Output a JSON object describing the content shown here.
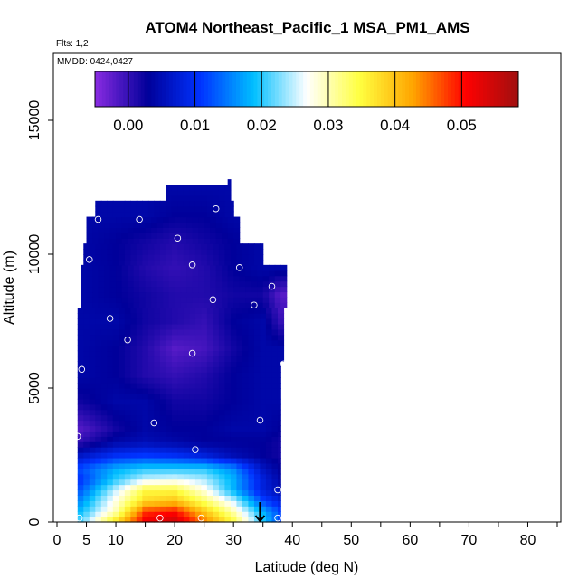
{
  "chart_data": {
    "type": "heatmap",
    "title": "ATOM4 Northeast_Pacific_1 MSA_PM1_AMS",
    "subtitle_flights": "Flts: 1,2",
    "subtitle_dates": "MMDD: 0424,0427",
    "xlabel": "Latitude (deg N)",
    "ylabel": "Altitude (m)",
    "xlim": [
      0,
      85
    ],
    "ylim": [
      0,
      17500
    ],
    "x_ticks": [
      0,
      5,
      10,
      20,
      30,
      40,
      50,
      60,
      70,
      80
    ],
    "y_ticks": [
      0,
      5000,
      10000,
      15000
    ],
    "colorbar": {
      "range": [
        -0.005,
        0.0585
      ],
      "ticks": [
        0.0,
        0.01,
        0.02,
        0.03,
        0.04,
        0.05
      ],
      "tick_labels": [
        "0.00",
        "0.01",
        "0.02",
        "0.03",
        "0.04",
        "0.05"
      ],
      "colors": [
        "#8a2be2",
        "#00009a",
        "#0033ff",
        "#00bfff",
        "#ffffff",
        "#ffff40",
        "#ffa500",
        "#ff0000",
        "#a01010"
      ]
    },
    "coverage": [
      {
        "z": 0,
        "lat_min": 3.5,
        "lat_max": 38
      },
      {
        "z": 6000,
        "lat_min": 3.5,
        "lat_max": 38.5
      },
      {
        "z": 8000,
        "lat_min": 4,
        "lat_max": 39
      },
      {
        "z": 9500,
        "lat_min": 4.5,
        "lat_max": 35
      },
      {
        "z": 10300,
        "lat_min": 5,
        "lat_max": 31
      },
      {
        "z": 11300,
        "lat_min": 6.5,
        "lat_max": 30
      },
      {
        "z": 11900,
        "lat_min": 18.5,
        "lat_max": 29.5
      },
      {
        "z": 12500,
        "lat_min": 29,
        "lat_max": 29.5
      }
    ],
    "field_bands": [
      {
        "z": 0,
        "profile": [
          [
            3.5,
            0.02
          ],
          [
            10,
            0.038
          ],
          [
            15,
            0.052
          ],
          [
            20,
            0.055
          ],
          [
            25,
            0.045
          ],
          [
            30,
            0.035
          ],
          [
            35,
            0.02
          ],
          [
            38,
            0.012
          ]
        ]
      },
      {
        "z": 400,
        "profile": [
          [
            3.5,
            0.018
          ],
          [
            10,
            0.03
          ],
          [
            15,
            0.048
          ],
          [
            20,
            0.05
          ],
          [
            25,
            0.04
          ],
          [
            30,
            0.03
          ],
          [
            35,
            0.018
          ],
          [
            38,
            0.012
          ]
        ]
      },
      {
        "z": 800,
        "profile": [
          [
            3.5,
            0.015
          ],
          [
            10,
            0.028
          ],
          [
            15,
            0.038
          ],
          [
            20,
            0.04
          ],
          [
            25,
            0.033
          ],
          [
            30,
            0.025
          ],
          [
            35,
            0.012
          ],
          [
            38,
            0.008
          ]
        ]
      },
      {
        "z": 1200,
        "profile": [
          [
            3.5,
            0.012
          ],
          [
            10,
            0.025
          ],
          [
            15,
            0.035
          ],
          [
            20,
            0.035
          ],
          [
            25,
            0.028
          ],
          [
            30,
            0.018
          ],
          [
            35,
            0.008
          ],
          [
            38,
            0.005
          ]
        ]
      },
      {
        "z": 1600,
        "profile": [
          [
            3.5,
            0.01
          ],
          [
            10,
            0.02
          ],
          [
            15,
            0.025
          ],
          [
            20,
            0.026
          ],
          [
            25,
            0.024
          ],
          [
            30,
            0.018
          ],
          [
            35,
            0.008
          ],
          [
            38,
            0.004
          ]
        ]
      },
      {
        "z": 2000,
        "profile": [
          [
            3.5,
            0.012
          ],
          [
            10,
            0.018
          ],
          [
            15,
            0.02
          ],
          [
            20,
            0.02
          ],
          [
            25,
            0.02
          ],
          [
            30,
            0.016
          ],
          [
            35,
            0.006
          ],
          [
            38,
            0.003
          ]
        ]
      },
      {
        "z": 2500,
        "profile": [
          [
            3.5,
            0.006
          ],
          [
            10,
            0.01
          ],
          [
            15,
            0.011
          ],
          [
            20,
            0.01
          ],
          [
            25,
            0.008
          ],
          [
            30,
            0.005
          ],
          [
            35,
            0.003
          ],
          [
            38,
            0.002
          ]
        ]
      },
      {
        "z": 3000,
        "profile": [
          [
            3.5,
            0.0
          ],
          [
            10,
            0.004
          ],
          [
            15,
            0.005
          ],
          [
            20,
            0.004
          ],
          [
            25,
            0.003
          ],
          [
            30,
            0.003
          ],
          [
            35,
            0.003
          ],
          [
            38,
            0.002
          ]
        ]
      },
      {
        "z": 3500,
        "profile": [
          [
            3.5,
            -0.002
          ],
          [
            10,
            0.002
          ],
          [
            15,
            0.004
          ],
          [
            20,
            0.003
          ],
          [
            25,
            0.003
          ],
          [
            30,
            0.004
          ],
          [
            35,
            0.004
          ],
          [
            38,
            0.003
          ]
        ]
      },
      {
        "z": 4500,
        "profile": [
          [
            3.5,
            0.002
          ],
          [
            10,
            0.004
          ],
          [
            15,
            0.004
          ],
          [
            20,
            0.002
          ],
          [
            25,
            0.002
          ],
          [
            30,
            0.003
          ],
          [
            35,
            0.004
          ],
          [
            38,
            0.004
          ]
        ]
      },
      {
        "z": 5500,
        "profile": [
          [
            3.5,
            0.004
          ],
          [
            10,
            0.003
          ],
          [
            15,
            0.001
          ],
          [
            20,
            0.0
          ],
          [
            25,
            0.001
          ],
          [
            30,
            0.003
          ],
          [
            35,
            0.004
          ],
          [
            38,
            0.004
          ]
        ]
      },
      {
        "z": 6500,
        "profile": [
          [
            3.5,
            0.004
          ],
          [
            10,
            0.003
          ],
          [
            15,
            0.001
          ],
          [
            20,
            -0.002
          ],
          [
            25,
            -0.001
          ],
          [
            30,
            0.002
          ],
          [
            35,
            0.004
          ],
          [
            38,
            0.004
          ]
        ]
      },
      {
        "z": 7500,
        "profile": [
          [
            3.5,
            0.004
          ],
          [
            10,
            0.004
          ],
          [
            15,
            0.002
          ],
          [
            20,
            0.001
          ],
          [
            25,
            0.0
          ],
          [
            30,
            0.003
          ],
          [
            35,
            0.004
          ],
          [
            38,
            0.0
          ]
        ]
      },
      {
        "z": 8500,
        "profile": [
          [
            3.5,
            0.004
          ],
          [
            10,
            0.003
          ],
          [
            15,
            0.002
          ],
          [
            20,
            0.001
          ],
          [
            25,
            0.001
          ],
          [
            30,
            0.002
          ],
          [
            35,
            0.002
          ],
          [
            38,
            -0.002
          ]
        ]
      },
      {
        "z": 9500,
        "profile": [
          [
            3.5,
            0.004
          ],
          [
            10,
            0.003
          ],
          [
            15,
            0.001
          ],
          [
            20,
            0.0
          ],
          [
            25,
            0.001
          ],
          [
            30,
            0.003
          ],
          [
            35,
            0.004
          ],
          [
            38,
            0.004
          ]
        ]
      },
      {
        "z": 10500,
        "profile": [
          [
            3.5,
            0.004
          ],
          [
            10,
            0.003
          ],
          [
            15,
            0.002
          ],
          [
            20,
            0.001
          ],
          [
            25,
            0.002
          ],
          [
            30,
            0.003
          ],
          [
            35,
            0.004
          ],
          [
            38,
            0.004
          ]
        ]
      },
      {
        "z": 11500,
        "profile": [
          [
            3.5,
            0.004
          ],
          [
            10,
            0.004
          ],
          [
            15,
            0.004
          ],
          [
            20,
            0.003
          ],
          [
            25,
            0.003
          ],
          [
            30,
            0.004
          ],
          [
            35,
            0.004
          ],
          [
            38,
            0.004
          ]
        ]
      },
      {
        "z": 12500,
        "profile": [
          [
            3.5,
            0.004
          ],
          [
            38,
            0.004
          ]
        ]
      }
    ],
    "observation_points": [
      {
        "lat": 3.8,
        "alt": 150
      },
      {
        "lat": 17.5,
        "alt": 150
      },
      {
        "lat": 24.5,
        "alt": 150
      },
      {
        "lat": 37.5,
        "alt": 150
      },
      {
        "lat": 37.5,
        "alt": 1200
      },
      {
        "lat": 23.5,
        "alt": 2700
      },
      {
        "lat": 3.5,
        "alt": 3200
      },
      {
        "lat": 16.5,
        "alt": 3700
      },
      {
        "lat": 34.5,
        "alt": 3800
      },
      {
        "lat": 4.2,
        "alt": 5700
      },
      {
        "lat": 38.5,
        "alt": 5900
      },
      {
        "lat": 23,
        "alt": 6300
      },
      {
        "lat": 12,
        "alt": 6800
      },
      {
        "lat": 9,
        "alt": 7600
      },
      {
        "lat": 33.5,
        "alt": 8100
      },
      {
        "lat": 26.5,
        "alt": 8300
      },
      {
        "lat": 36.5,
        "alt": 8800
      },
      {
        "lat": 5.5,
        "alt": 9800
      },
      {
        "lat": 23,
        "alt": 9600
      },
      {
        "lat": 31,
        "alt": 9500
      },
      {
        "lat": 20.5,
        "alt": 10600
      },
      {
        "lat": 7,
        "alt": 11300
      },
      {
        "lat": 14,
        "alt": 11300
      },
      {
        "lat": 27,
        "alt": 11700
      }
    ],
    "marker_arrow_lat": 34.5,
    "grid": false,
    "legend_position": "top"
  }
}
